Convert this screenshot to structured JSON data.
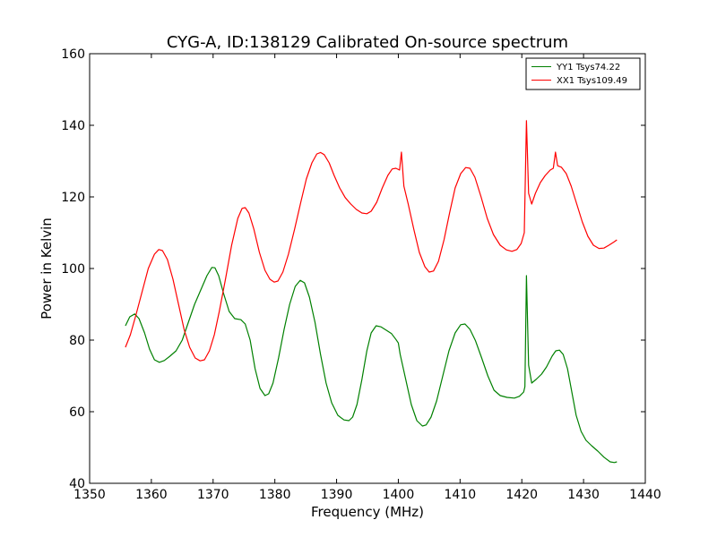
{
  "chart_data": {
    "type": "line",
    "title": "CYG-A, ID:138129 Calibrated On-source spectrum",
    "xlabel": "Frequency (MHz)",
    "ylabel": "Power in Kelvin",
    "xlim": [
      1350,
      1440
    ],
    "ylim": [
      40,
      160
    ],
    "xticks": [
      1350,
      1360,
      1370,
      1380,
      1390,
      1400,
      1410,
      1420,
      1430,
      1440
    ],
    "yticks": [
      40,
      60,
      80,
      100,
      120,
      140,
      160
    ],
    "grid": false,
    "legend": "top-right",
    "series": [
      {
        "name": "YY1 Tsys74.22",
        "color": "#008000",
        "points": [
          [
            1355.8,
            84
          ],
          [
            1356.5,
            86.5
          ],
          [
            1357.3,
            87.3
          ],
          [
            1358,
            86
          ],
          [
            1358.9,
            82
          ],
          [
            1359.7,
            77.5
          ],
          [
            1360.5,
            74.5
          ],
          [
            1361.3,
            73.8
          ],
          [
            1362.1,
            74.3
          ],
          [
            1363,
            75.5
          ],
          [
            1364,
            77
          ],
          [
            1365,
            80
          ],
          [
            1366,
            85
          ],
          [
            1367,
            90
          ],
          [
            1368,
            94
          ],
          [
            1369,
            98
          ],
          [
            1369.8,
            100.3
          ],
          [
            1370.3,
            100.2
          ],
          [
            1370.9,
            98
          ],
          [
            1371.7,
            93
          ],
          [
            1372.6,
            88
          ],
          [
            1373.5,
            86
          ],
          [
            1374.5,
            85.7
          ],
          [
            1375.2,
            84.5
          ],
          [
            1376,
            80
          ],
          [
            1376.8,
            72
          ],
          [
            1377.6,
            66.5
          ],
          [
            1378.4,
            64.5
          ],
          [
            1379,
            65
          ],
          [
            1379.7,
            68
          ],
          [
            1380.6,
            75
          ],
          [
            1381.5,
            83
          ],
          [
            1382.4,
            90
          ],
          [
            1383.3,
            95
          ],
          [
            1384.1,
            96.7
          ],
          [
            1384.8,
            96
          ],
          [
            1385.6,
            92
          ],
          [
            1386.5,
            85
          ],
          [
            1387.4,
            76
          ],
          [
            1388.3,
            68
          ],
          [
            1389.2,
            62.5
          ],
          [
            1390.2,
            59
          ],
          [
            1391.2,
            57.7
          ],
          [
            1392,
            57.5
          ],
          [
            1392.6,
            58.5
          ],
          [
            1393.3,
            62
          ],
          [
            1394.1,
            69
          ],
          [
            1394.9,
            77
          ],
          [
            1395.6,
            82
          ],
          [
            1396.4,
            84
          ],
          [
            1397.2,
            83.7
          ],
          [
            1398,
            82.8
          ],
          [
            1398.9,
            81.8
          ],
          [
            1399.6,
            80.2
          ],
          [
            1400,
            79.2
          ],
          [
            1400.3,
            76
          ],
          [
            1401.2,
            69
          ],
          [
            1402.1,
            62
          ],
          [
            1403,
            57.5
          ],
          [
            1403.9,
            56
          ],
          [
            1404.5,
            56.3
          ],
          [
            1405.3,
            58.5
          ],
          [
            1406.2,
            63
          ],
          [
            1407.2,
            70
          ],
          [
            1408.2,
            77
          ],
          [
            1409.2,
            82
          ],
          [
            1410.1,
            84.3
          ],
          [
            1410.8,
            84.5
          ],
          [
            1411.6,
            83
          ],
          [
            1412.5,
            79.8
          ],
          [
            1413.5,
            75
          ],
          [
            1414.5,
            70
          ],
          [
            1415.5,
            66
          ],
          [
            1416.5,
            64.5
          ],
          [
            1417.6,
            64
          ],
          [
            1418.8,
            63.8
          ],
          [
            1419.6,
            64.3
          ],
          [
            1420.3,
            65.5
          ],
          [
            1420.5,
            67
          ],
          [
            1420.75,
            98
          ],
          [
            1421.1,
            73
          ],
          [
            1421.6,
            68
          ],
          [
            1422.3,
            69
          ],
          [
            1423.2,
            70.5
          ],
          [
            1424,
            72.5
          ],
          [
            1424.9,
            75.5
          ],
          [
            1425.5,
            77
          ],
          [
            1426.1,
            77.2
          ],
          [
            1426.7,
            76
          ],
          [
            1427.4,
            72
          ],
          [
            1428.1,
            65.5
          ],
          [
            1428.8,
            59
          ],
          [
            1429.6,
            54.5
          ],
          [
            1430.4,
            52
          ],
          [
            1431.3,
            50.5
          ],
          [
            1432.3,
            49
          ],
          [
            1433.3,
            47.3
          ],
          [
            1434.3,
            46
          ],
          [
            1435,
            45.8
          ],
          [
            1435.4,
            46
          ]
        ]
      },
      {
        "name": "XX1 Tsys109.49",
        "color": "#ff0000",
        "points": [
          [
            1355.8,
            78
          ],
          [
            1356.6,
            81.5
          ],
          [
            1357.5,
            87
          ],
          [
            1358.5,
            93.5
          ],
          [
            1359.5,
            100
          ],
          [
            1360.5,
            104
          ],
          [
            1361.2,
            105.3
          ],
          [
            1361.8,
            105
          ],
          [
            1362.6,
            102.5
          ],
          [
            1363.5,
            97
          ],
          [
            1364.4,
            90
          ],
          [
            1365.3,
            83
          ],
          [
            1366.2,
            78
          ],
          [
            1367.1,
            75
          ],
          [
            1367.9,
            74.2
          ],
          [
            1368.6,
            74.5
          ],
          [
            1369.4,
            77
          ],
          [
            1370.2,
            81.5
          ],
          [
            1371,
            88
          ],
          [
            1372,
            97
          ],
          [
            1373,
            106.5
          ],
          [
            1374,
            114
          ],
          [
            1374.7,
            116.8
          ],
          [
            1375.2,
            117
          ],
          [
            1375.8,
            115.5
          ],
          [
            1376.6,
            111
          ],
          [
            1377.5,
            104.5
          ],
          [
            1378.4,
            99.5
          ],
          [
            1379.2,
            97
          ],
          [
            1379.9,
            96.2
          ],
          [
            1380.5,
            96.5
          ],
          [
            1381.3,
            99
          ],
          [
            1382.2,
            104
          ],
          [
            1383.2,
            111
          ],
          [
            1384.2,
            118.5
          ],
          [
            1385.1,
            125
          ],
          [
            1386,
            129.5
          ],
          [
            1386.8,
            132
          ],
          [
            1387.4,
            132.4
          ],
          [
            1388,
            131.8
          ],
          [
            1388.8,
            129.5
          ],
          [
            1389.6,
            126
          ],
          [
            1390.5,
            122.5
          ],
          [
            1391.4,
            119.8
          ],
          [
            1392.3,
            118
          ],
          [
            1393.2,
            116.5
          ],
          [
            1394.1,
            115.5
          ],
          [
            1394.9,
            115.3
          ],
          [
            1395.6,
            116
          ],
          [
            1396.5,
            118.5
          ],
          [
            1397.4,
            122.5
          ],
          [
            1398.3,
            126
          ],
          [
            1399,
            127.8
          ],
          [
            1399.6,
            128
          ],
          [
            1400.2,
            127.5
          ],
          [
            1400.5,
            132.5
          ],
          [
            1400.9,
            123
          ],
          [
            1401.6,
            118
          ],
          [
            1402.5,
            111
          ],
          [
            1403.4,
            104.5
          ],
          [
            1404.3,
            100.5
          ],
          [
            1405,
            99
          ],
          [
            1405.7,
            99.3
          ],
          [
            1406.5,
            102
          ],
          [
            1407.4,
            108
          ],
          [
            1408.3,
            115.5
          ],
          [
            1409.2,
            122.5
          ],
          [
            1410.1,
            126.5
          ],
          [
            1410.9,
            128.2
          ],
          [
            1411.6,
            128
          ],
          [
            1412.4,
            125.5
          ],
          [
            1413.4,
            120
          ],
          [
            1414.4,
            114
          ],
          [
            1415.4,
            109.5
          ],
          [
            1416.5,
            106.5
          ],
          [
            1417.5,
            105.2
          ],
          [
            1418.4,
            104.8
          ],
          [
            1419.2,
            105.3
          ],
          [
            1419.9,
            107
          ],
          [
            1420.4,
            110
          ],
          [
            1420.75,
            141.3
          ],
          [
            1421.1,
            121
          ],
          [
            1421.6,
            118
          ],
          [
            1422.2,
            121
          ],
          [
            1423,
            124
          ],
          [
            1423.8,
            126
          ],
          [
            1424.6,
            127.5
          ],
          [
            1425.1,
            128
          ],
          [
            1425.45,
            132.5
          ],
          [
            1425.8,
            128.7
          ],
          [
            1426.4,
            128.3
          ],
          [
            1427.2,
            126.5
          ],
          [
            1428,
            123
          ],
          [
            1428.9,
            118
          ],
          [
            1429.8,
            113
          ],
          [
            1430.7,
            109
          ],
          [
            1431.6,
            106.5
          ],
          [
            1432.5,
            105.6
          ],
          [
            1433.3,
            105.7
          ],
          [
            1434.1,
            106.5
          ],
          [
            1435,
            107.5
          ],
          [
            1435.4,
            108
          ]
        ]
      }
    ]
  }
}
